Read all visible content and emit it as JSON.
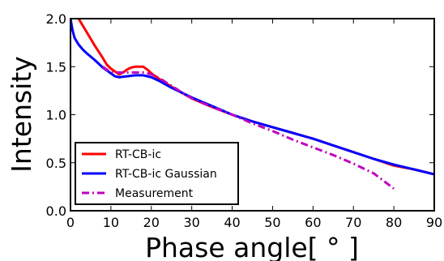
{
  "chart_data": {
    "type": "line",
    "xlabel": "Phase angle[ ° ]",
    "ylabel": "Intensity",
    "xlim": [
      0,
      90
    ],
    "ylim": [
      0,
      2.0
    ],
    "xticks": [
      0,
      10,
      20,
      30,
      40,
      50,
      60,
      70,
      80,
      90
    ],
    "yticks": [
      0.0,
      0.5,
      1.0,
      1.5,
      2.0
    ],
    "xtick_labels": [
      "0",
      "10",
      "20",
      "30",
      "40",
      "50",
      "60",
      "70",
      "80",
      "90"
    ],
    "ytick_labels": [
      "0.0",
      "0.5",
      "1.0",
      "1.5",
      "2.0"
    ],
    "grid": false,
    "legend_position": "bottom-left",
    "series": [
      {
        "name": "RT-CB-ic",
        "color": "#ff0000",
        "style": "solid",
        "x": [
          2,
          4,
          6,
          8,
          9,
          10,
          11,
          12,
          13,
          14,
          15,
          16,
          17,
          18,
          19,
          20,
          22,
          25,
          30,
          35,
          40,
          45,
          50,
          55,
          60,
          65,
          70,
          75,
          80,
          85,
          90
        ],
        "y": [
          2.0,
          1.86,
          1.72,
          1.59,
          1.52,
          1.48,
          1.45,
          1.42,
          1.44,
          1.47,
          1.49,
          1.5,
          1.5,
          1.5,
          1.47,
          1.43,
          1.37,
          1.29,
          1.17,
          1.08,
          1.0,
          0.93,
          0.87,
          0.81,
          0.75,
          0.68,
          0.61,
          0.54,
          0.47,
          0.43,
          0.38
        ]
      },
      {
        "name": "RT-CB-ic Gaussian",
        "color": "#0000ff",
        "style": "solid",
        "x": [
          0,
          0.5,
          1,
          2,
          3,
          4,
          6,
          8,
          10,
          11,
          12,
          14,
          16,
          18,
          20,
          22,
          25,
          30,
          35,
          40,
          45,
          50,
          55,
          60,
          65,
          70,
          75,
          80,
          85,
          90
        ],
        "y": [
          2.0,
          1.88,
          1.8,
          1.73,
          1.68,
          1.64,
          1.57,
          1.49,
          1.43,
          1.4,
          1.39,
          1.4,
          1.41,
          1.41,
          1.39,
          1.35,
          1.28,
          1.18,
          1.09,
          1.0,
          0.93,
          0.87,
          0.81,
          0.75,
          0.68,
          0.61,
          0.54,
          0.48,
          0.43,
          0.38
        ]
      },
      {
        "name": "Measurement",
        "color": "#bf00bf",
        "style": "dashdot",
        "x": [
          8,
          10,
          12,
          14,
          16,
          18,
          20,
          22,
          25,
          28,
          30,
          35,
          40,
          45,
          50,
          55,
          60,
          65,
          70,
          75,
          80
        ],
        "y": [
          1.5,
          1.44,
          1.44,
          1.44,
          1.44,
          1.44,
          1.42,
          1.38,
          1.3,
          1.22,
          1.17,
          1.08,
          1.0,
          0.91,
          0.83,
          0.74,
          0.66,
          0.58,
          0.49,
          0.39,
          0.23
        ]
      }
    ]
  }
}
